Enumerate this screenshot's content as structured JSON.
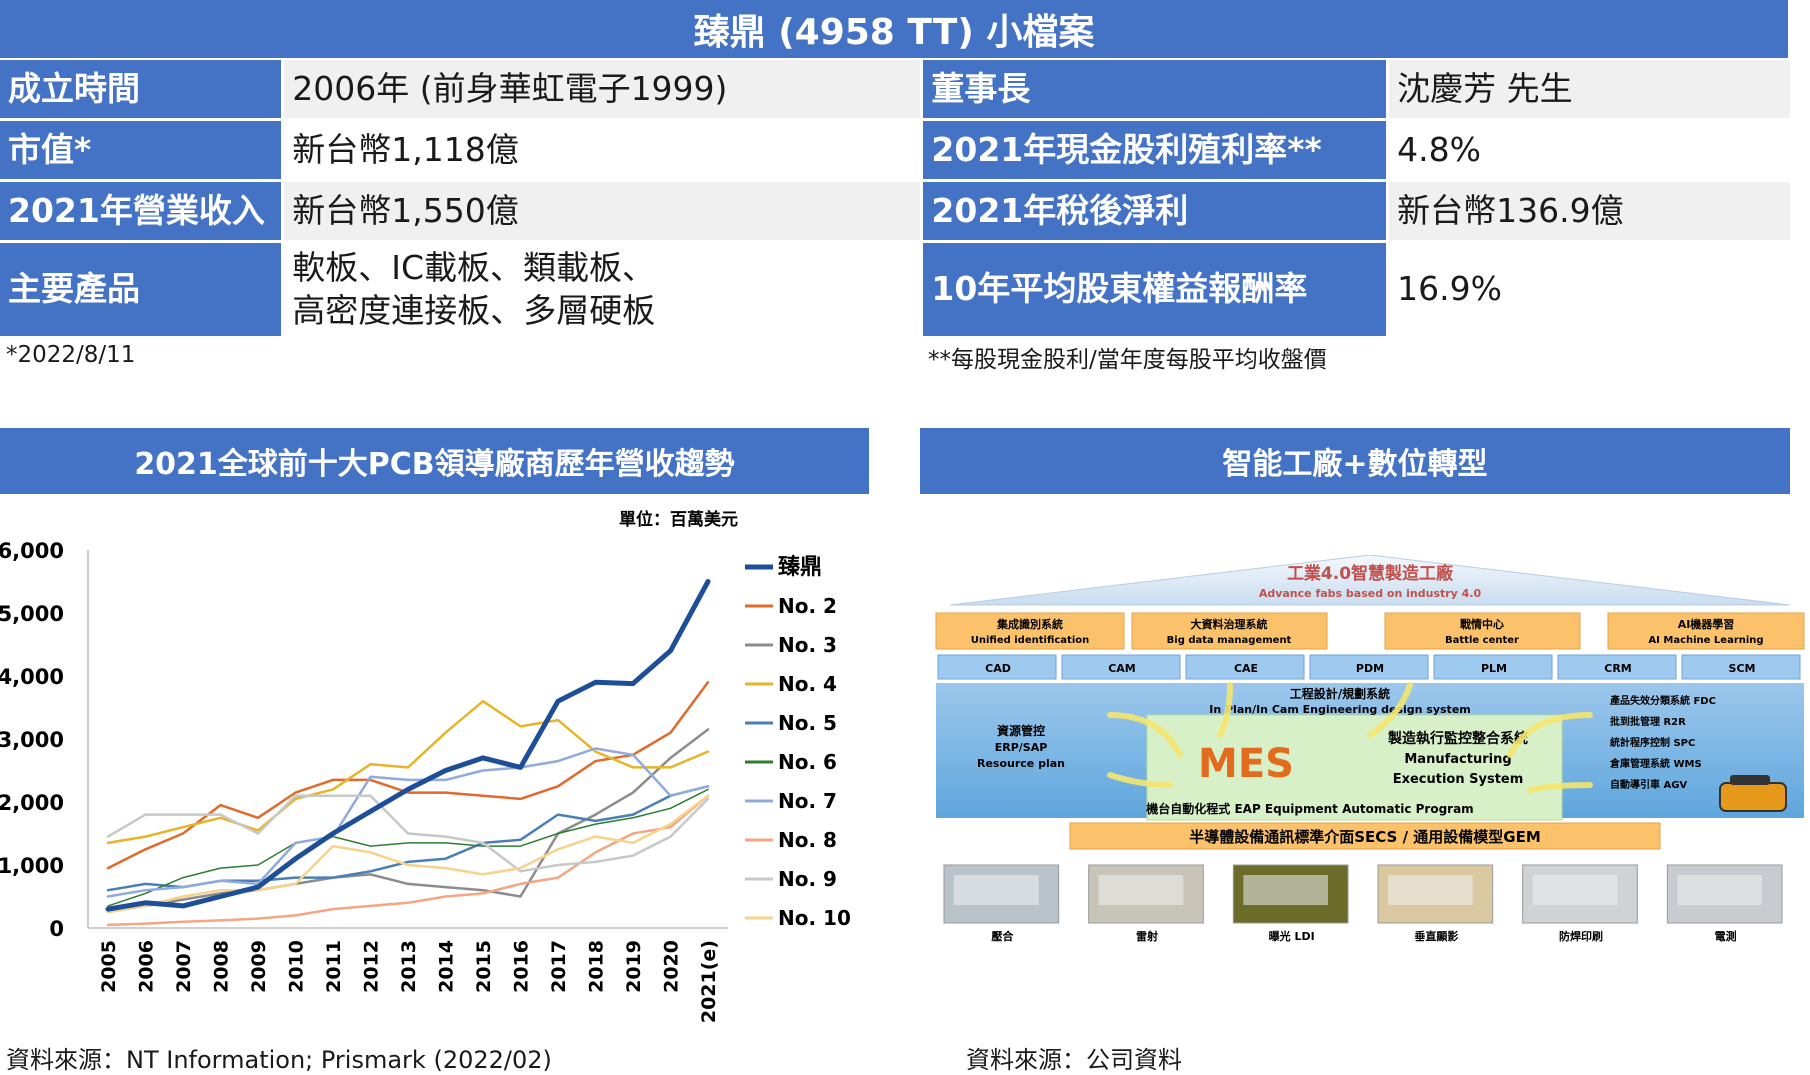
{
  "title": "臻鼎 (4958 TT) 小檔案",
  "info": {
    "founded_label": "成立時間",
    "founded_value": "2006年 (前身華虹電子1999)",
    "chairman_label": "董事長",
    "chairman_value": "沈慶芳 先生",
    "mcap_label": "市值*",
    "mcap_value": "新台幣1,118億",
    "yield_label": "2021年現金股利殖利率**",
    "yield_value": "4.8%",
    "revenue_label": "2021年營業收入",
    "revenue_value": "新台幣1,550億",
    "netincome_label": "2021年稅後淨利",
    "netincome_value": "新台幣136.9億",
    "products_label": "主要產品",
    "products_line1": "軟板、IC載板、類載板、",
    "products_line2": "高密度連接板、多層硬板",
    "roe_label": "10年平均股東權益報酬率",
    "roe_value": "16.9%",
    "note_date": "*2022/8/11",
    "note_yield": "**每股現金股利/當年度每股平均收盤價"
  },
  "chart_section_title": "2021全球前十大PCB領導廠商歷年營收趨勢",
  "diagram_section_title": "智能工廠+數位轉型",
  "chart_data": {
    "type": "line",
    "unit_label": "單位：百萬美元",
    "x": [
      "2005",
      "2006",
      "2007",
      "2008",
      "2009",
      "2010",
      "2011",
      "2012",
      "2013",
      "2014",
      "2015",
      "2016",
      "2017",
      "2018",
      "2019",
      "2020",
      "2021(e)"
    ],
    "ylim": [
      0,
      6000
    ],
    "yticks": [
      "0",
      "1,000",
      "2,000",
      "3,000",
      "4,000",
      "5,000",
      "6,000"
    ],
    "ytick_values": [
      0,
      1000,
      2000,
      3000,
      4000,
      5000,
      6000
    ],
    "legend_position": "right",
    "series": [
      {
        "name": "臻鼎",
        "color": "#1f4e99",
        "width": 5,
        "values": [
          300,
          400,
          350,
          500,
          650,
          1100,
          1500,
          1850,
          2200,
          2500,
          2700,
          2550,
          3600,
          3900,
          3880,
          4400,
          5500
        ]
      },
      {
        "name": "No. 2",
        "color": "#e06a2c",
        "width": 2.5,
        "values": [
          950,
          1250,
          1500,
          1950,
          1750,
          2150,
          2350,
          2350,
          2150,
          2150,
          2100,
          2050,
          2250,
          2650,
          2750,
          3100,
          3900
        ]
      },
      {
        "name": "No. 3",
        "color": "#8c8c8c",
        "width": 2.5,
        "values": [
          300,
          350,
          450,
          550,
          600,
          700,
          800,
          850,
          700,
          650,
          600,
          500,
          1500,
          1800,
          2150,
          2700,
          3150
        ]
      },
      {
        "name": "No. 4",
        "color": "#e6b428",
        "width": 2.5,
        "values": [
          1350,
          1450,
          1600,
          1750,
          1550,
          2050,
          2200,
          2600,
          2550,
          3100,
          3600,
          3200,
          3300,
          2800,
          2550,
          2550,
          2800
        ]
      },
      {
        "name": "No. 5",
        "color": "#4a7fb5",
        "width": 2.5,
        "values": [
          600,
          700,
          650,
          750,
          750,
          800,
          800,
          900,
          1050,
          1100,
          1350,
          1400,
          1800,
          1700,
          1800,
          2100,
          2250
        ]
      },
      {
        "name": "No. 6",
        "color": "#2e7d32",
        "width": 1.5,
        "values": [
          350,
          550,
          800,
          950,
          1000,
          1350,
          1450,
          1300,
          1350,
          1350,
          1300,
          1300,
          1500,
          1650,
          1750,
          1900,
          2200
        ]
      },
      {
        "name": "No. 7",
        "color": "#8faadc",
        "width": 2.5,
        "values": [
          500,
          600,
          650,
          750,
          700,
          1350,
          1450,
          2400,
          2350,
          2350,
          2500,
          2550,
          2650,
          2850,
          2750,
          2100,
          2250
        ]
      },
      {
        "name": "No. 8",
        "color": "#f4a582",
        "width": 2.5,
        "values": [
          50,
          70,
          100,
          120,
          150,
          200,
          300,
          350,
          400,
          500,
          550,
          700,
          800,
          1200,
          1500,
          1600,
          2100
        ]
      },
      {
        "name": "No. 9",
        "color": "#c8c8c8",
        "width": 2.5,
        "values": [
          1450,
          1800,
          1800,
          1800,
          1500,
          2100,
          2100,
          2100,
          1500,
          1450,
          1350,
          900,
          1000,
          1050,
          1150,
          1450,
          2050
        ]
      },
      {
        "name": "No. 10",
        "color": "#f6d28a",
        "width": 2.5,
        "values": [
          250,
          350,
          500,
          600,
          600,
          700,
          1300,
          1200,
          1000,
          950,
          850,
          950,
          1250,
          1450,
          1350,
          1650,
          2100
        ]
      }
    ]
  },
  "chart_source": "資料來源：NT Information; Prismark (2022/02)",
  "diagram": {
    "roof_title": "工業4.0智慧製造工廠",
    "roof_subtitle": "Advance fabs based on industry 4.0",
    "top_boxes": [
      {
        "zh": "集成識別系統",
        "en": "Unified identification"
      },
      {
        "zh": "大資料治理系統",
        "en": "Big data management"
      },
      {
        "zh": "戰情中心",
        "en": "Battle center"
      },
      {
        "zh": "AI機器學習",
        "en": "AI Machine Learning"
      }
    ],
    "systems": [
      "CAD",
      "CAM",
      "CAE",
      "PDM",
      "PLM",
      "CRM",
      "SCM"
    ],
    "eng_zh": "工程設計/規劃系統",
    "eng_en": "In Plan/In Cam Engineering design system",
    "erp_zh": "資源管控",
    "erp_en1": "ERP/SAP",
    "erp_en2": "Resource plan",
    "mes": "MES",
    "mfg_zh": "製造執行監控整合系統",
    "mfg_en1": "Manufacturing",
    "mfg_en2": "Execution System",
    "right_list": [
      "產品失效分類系統 FDC",
      "批到批管理 R2R",
      "統計程序控制 SPC",
      "倉庫管理系統 WMS",
      "自動導引車 AGV"
    ],
    "eap": "機台自動化程式 EAP Equipment Automatic Program",
    "secs": "半導體設備通訊標準介面SECS / 通用設備模型GEM",
    "machines": [
      "壓合",
      "雷射",
      "曝光 LDI",
      "垂直顯影",
      "防焊印刷",
      "電測"
    ]
  },
  "diagram_source": "資料來源：公司資料"
}
